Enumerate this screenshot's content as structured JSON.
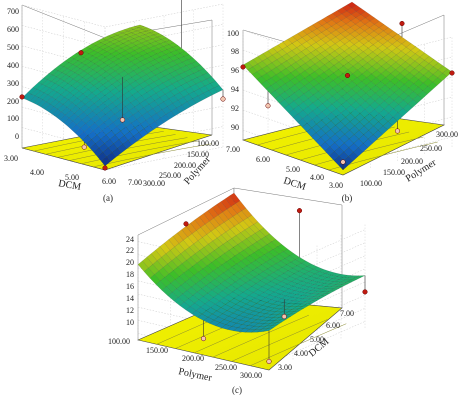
{
  "chart_data": [
    {
      "type": "surface",
      "panel_label": "(a)",
      "xlabel": "DCM",
      "ylabel": "Polymer",
      "zlabel": "",
      "x_ticks": [
        "3.00",
        "4.00",
        "5.00",
        "6.00",
        "7.00"
      ],
      "y_ticks": [
        "300.00",
        "250.00",
        "200.00",
        "150.00",
        "100.00"
      ],
      "z_ticks": [
        "0",
        "100",
        "200",
        "300",
        "400",
        "500",
        "600",
        "700"
      ],
      "xlim": [
        3,
        7
      ],
      "ylim": [
        100,
        300
      ],
      "zlim": [
        0,
        700
      ],
      "surface_corners": {
        "dcm3_poly300": 245,
        "dcm7_poly300": 20,
        "dcm3_poly100": 490,
        "dcm7_poly100": 280
      },
      "design_points": [
        {
          "x": 3,
          "y": 300,
          "z": 250,
          "above": true
        },
        {
          "x": 3,
          "y": 200,
          "z": 410,
          "above": true
        },
        {
          "x": 5,
          "y": 100,
          "z": 680,
          "above": true
        },
        {
          "x": 6,
          "y": 300,
          "z": 85,
          "above": false
        },
        {
          "x": 7,
          "y": 100,
          "z": 235,
          "above": false
        },
        {
          "x": 5,
          "y": 200,
          "z": 135,
          "above": false
        },
        {
          "x": 7,
          "y": 300,
          "z": 10,
          "above": true
        }
      ]
    },
    {
      "type": "surface",
      "panel_label": "(b)",
      "xlabel": "DCM",
      "ylabel": "Polymer",
      "zlabel": "",
      "x_ticks": [
        "7.00",
        "6.00",
        "5.00",
        "4.00",
        "3.00"
      ],
      "y_ticks": [
        "100.00",
        "150.00",
        "200.00",
        "250.00",
        "300.00"
      ],
      "z_ticks": [
        "90",
        "92",
        "94",
        "96",
        "98",
        "100"
      ],
      "xlim": [
        3,
        7
      ],
      "ylim": [
        100,
        300
      ],
      "zlim": [
        89,
        100
      ],
      "surface_corners": {
        "dcm7_poly100": 96.5,
        "dcm3_poly100": 89.5,
        "dcm7_poly300": 100,
        "dcm3_poly300": 96.5
      },
      "design_points": [
        {
          "x": 7,
          "y": 100,
          "z": 96.3,
          "above": true
        },
        {
          "x": 5,
          "y": 200,
          "z": 95.8,
          "above": true
        },
        {
          "x": 3,
          "y": 300,
          "z": 96.4,
          "above": true
        },
        {
          "x": 5,
          "y": 300,
          "z": 99.6,
          "above": true
        },
        {
          "x": 6,
          "y": 100,
          "z": 93.3,
          "above": false
        },
        {
          "x": 3,
          "y": 200,
          "z": 92.0,
          "above": false
        },
        {
          "x": 3,
          "y": 100,
          "z": 90.3,
          "above": false
        }
      ]
    },
    {
      "type": "surface",
      "panel_label": "(c)",
      "xlabel": "Polymer",
      "ylabel": "DCM",
      "zlabel": "",
      "x_ticks": [
        "100.00",
        "150.00",
        "200.00",
        "250.00",
        "300.00"
      ],
      "y_ticks": [
        "3.00",
        "4.00",
        "5.00",
        "6.00",
        "7.00"
      ],
      "z_ticks": [
        "10",
        "12",
        "14",
        "16",
        "18",
        "20",
        "22",
        "24"
      ],
      "xlim": [
        100,
        300
      ],
      "ylim": [
        3,
        7
      ],
      "zlim": [
        9,
        25
      ],
      "surface_corners": {
        "poly100_dcm3": 20.5,
        "poly300_dcm3": 15,
        "poly100_dcm7": 25,
        "poly300_dcm7": 17
      },
      "design_points": [
        {
          "x": 100,
          "y": 5,
          "z": 23.5,
          "above": true
        },
        {
          "x": 200,
          "y": 7,
          "z": 24.6,
          "above": true
        },
        {
          "x": 200,
          "y": 3,
          "z": 11.5,
          "above": false
        },
        {
          "x": 300,
          "y": 3,
          "z": 10.3,
          "above": false
        },
        {
          "x": 300,
          "y": 7,
          "z": 14.5,
          "above": true
        },
        {
          "x": 250,
          "y": 5,
          "z": 12.8,
          "above": false
        }
      ]
    }
  ]
}
